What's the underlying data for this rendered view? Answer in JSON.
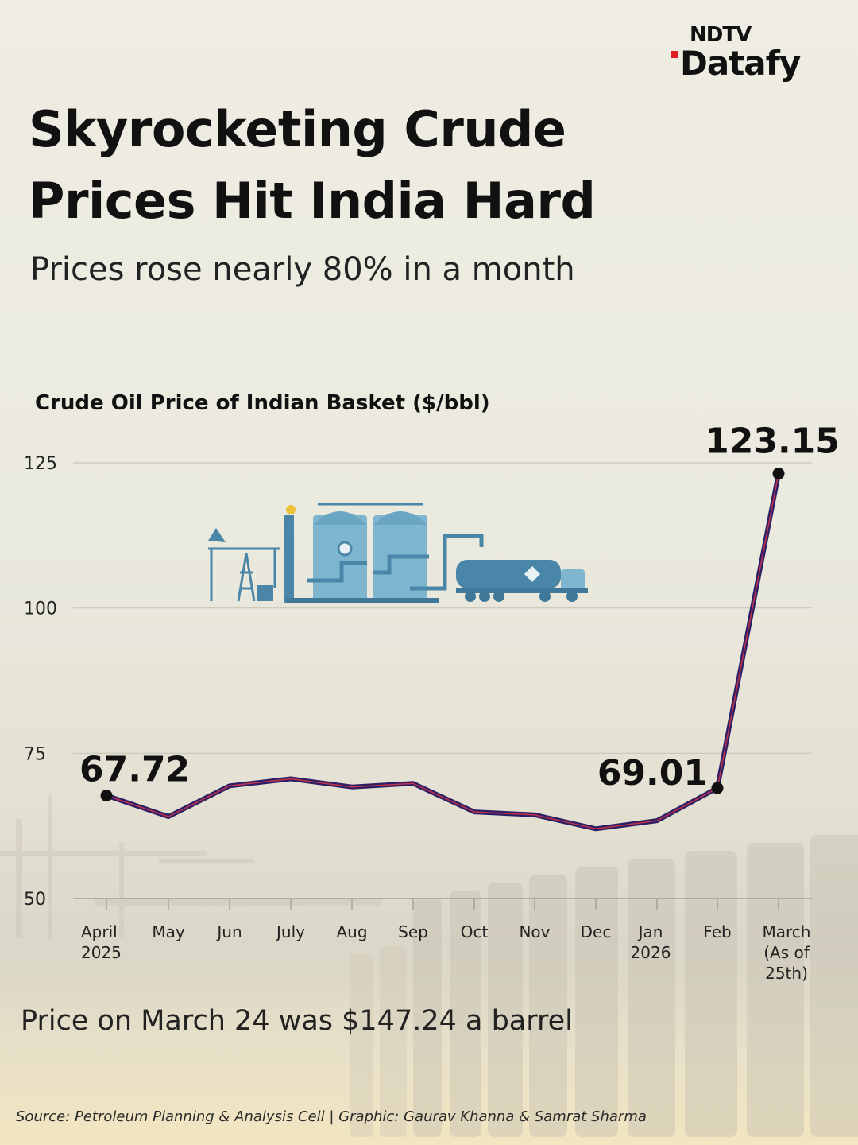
{
  "logo": {
    "top": "NDTV",
    "main": "Datafy",
    "accent": "#e01b24"
  },
  "headline": "Skyrocketing Crude Prices Hit India Hard",
  "subtitle": "Prices rose nearly 80% in a month",
  "chart_data": {
    "type": "line",
    "title": "Crude Oil Price of Indian Basket ($/bbl)",
    "xlabel": "",
    "ylabel": "",
    "ylim": [
      50,
      125
    ],
    "yticks": [
      "125",
      "100",
      "75",
      "50"
    ],
    "categories": [
      [
        "April",
        "2025"
      ],
      [
        "May"
      ],
      [
        "Jun"
      ],
      [
        "July"
      ],
      [
        "Aug"
      ],
      [
        "Sep"
      ],
      [
        "Oct"
      ],
      [
        "Nov"
      ],
      [
        "Dec"
      ],
      [
        "Jan",
        "2026"
      ],
      [
        "Feb"
      ],
      [
        "March",
        "(As of",
        "25th)"
      ]
    ],
    "series": [
      {
        "name": "Indian Basket",
        "values": [
          67.72,
          64.1,
          69.4,
          70.6,
          69.2,
          69.8,
          64.9,
          64.4,
          62.0,
          63.4,
          69.01,
          123.15
        ]
      }
    ],
    "data_labels": [
      {
        "index": 0,
        "text": "67.72"
      },
      {
        "index": 10,
        "text": "69.01"
      },
      {
        "index": 11,
        "text": "123.15"
      }
    ],
    "line_color": "#2d1f66",
    "line_inner_color": "#c2334a",
    "grid": true
  },
  "note": "Price on March 24 was $147.24 a barrel",
  "source": "Source: Petroleum Planning & Analysis Cell | Graphic: Gaurav Khanna & Samrat Sharma"
}
